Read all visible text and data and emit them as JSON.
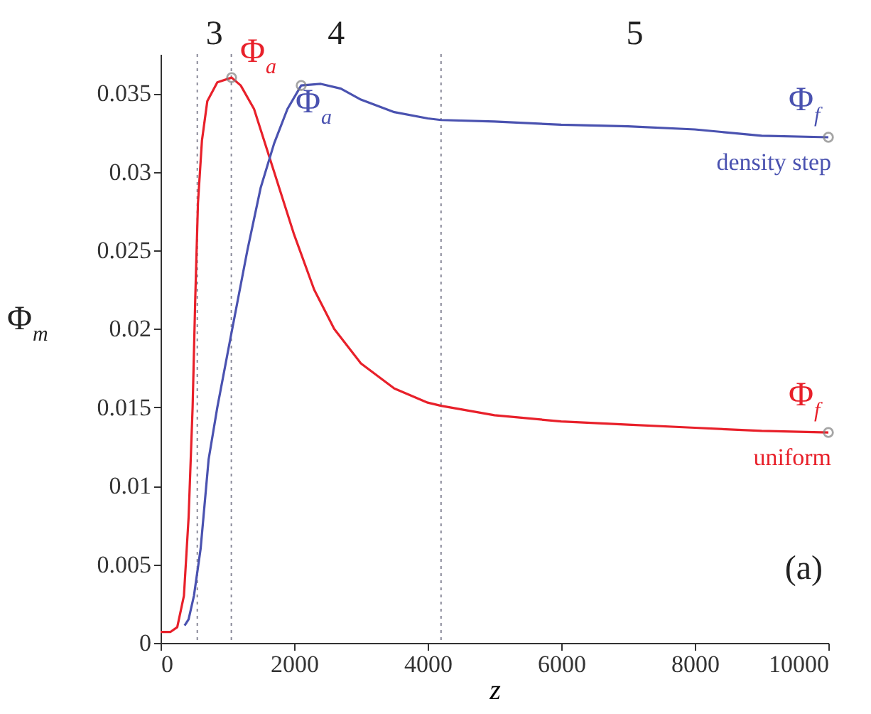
{
  "chart_data": {
    "type": "line",
    "xlabel": "z",
    "ylabel": "Φ$_{m}$",
    "xlim": [
      0,
      10000
    ],
    "ylim": [
      0,
      0.0375
    ],
    "xticks": [
      0,
      2000,
      4000,
      6000,
      8000,
      10000
    ],
    "yticks": [
      0,
      0.005,
      0.01,
      0.015,
      0.02,
      0.025,
      0.03,
      0.035
    ],
    "grid": false,
    "line_style": "solid",
    "series": [
      {
        "name": "uniform",
        "color": "#e8202a",
        "x": [
          0,
          150,
          250,
          350,
          420,
          480,
          520,
          560,
          620,
          700,
          850,
          1064,
          1200,
          1400,
          1700,
          2000,
          2300,
          2600,
          3000,
          3500,
          4000,
          4200,
          5000,
          6000,
          7000,
          8000,
          9000,
          10000
        ],
        "values": [
          0.0007,
          0.0007,
          0.001,
          0.003,
          0.008,
          0.015,
          0.022,
          0.028,
          0.032,
          0.0345,
          0.0357,
          0.036,
          0.0355,
          0.034,
          0.03,
          0.026,
          0.0225,
          0.02,
          0.0178,
          0.0162,
          0.0153,
          0.0151,
          0.0145,
          0.0141,
          0.0139,
          0.0137,
          0.0135,
          0.0134
        ]
      },
      {
        "name": "density step",
        "color": "#4a52b0",
        "x": [
          360,
          420,
          500,
          600,
          720,
          850,
          1060,
          1300,
          1500,
          1700,
          1900,
          2106,
          2400,
          2700,
          3000,
          3500,
          4000,
          4200,
          5000,
          6000,
          7000,
          8000,
          9000,
          10000
        ],
        "values": [
          0.0011,
          0.0015,
          0.003,
          0.006,
          0.0117,
          0.015,
          0.0197,
          0.025,
          0.029,
          0.0318,
          0.034,
          0.0355,
          0.0356,
          0.0353,
          0.0346,
          0.0338,
          0.0334,
          0.0333,
          0.0332,
          0.033,
          0.0329,
          0.0327,
          0.0323,
          0.0322
        ]
      },
      {
        "type": "scatter",
        "marker": "circle",
        "color": "#7f7f7f",
        "x": [
          1064,
          2106,
          10000,
          10000
        ],
        "values": [
          0.036,
          0.0355,
          0.0322,
          0.0134
        ]
      }
    ],
    "ref_lines": [
      {
        "axis": "x",
        "value": 550,
        "color": "#8a8a9a",
        "line_style": "dotted"
      },
      {
        "axis": "x",
        "value": 1060,
        "color": "#8a8a9a",
        "line_style": "dotted"
      },
      {
        "axis": "x",
        "value": 4200,
        "color": "#8a8a9a",
        "line_style": "dotted"
      }
    ],
    "annotations": [
      "3",
      "4",
      "5",
      {
        "text": "Φ$_{a}$",
        "x": 1064,
        "y": 0.036
      },
      {
        "text": "Φ$_{a}$",
        "x": 2106,
        "y": 0.0355
      },
      {
        "text": "Φ$_{f}$",
        "x": 10000,
        "y": 0.0322
      },
      {
        "text": "Φ$_{f}$",
        "x": 10000,
        "y": 0.0134
      },
      "(a)"
    ]
  }
}
